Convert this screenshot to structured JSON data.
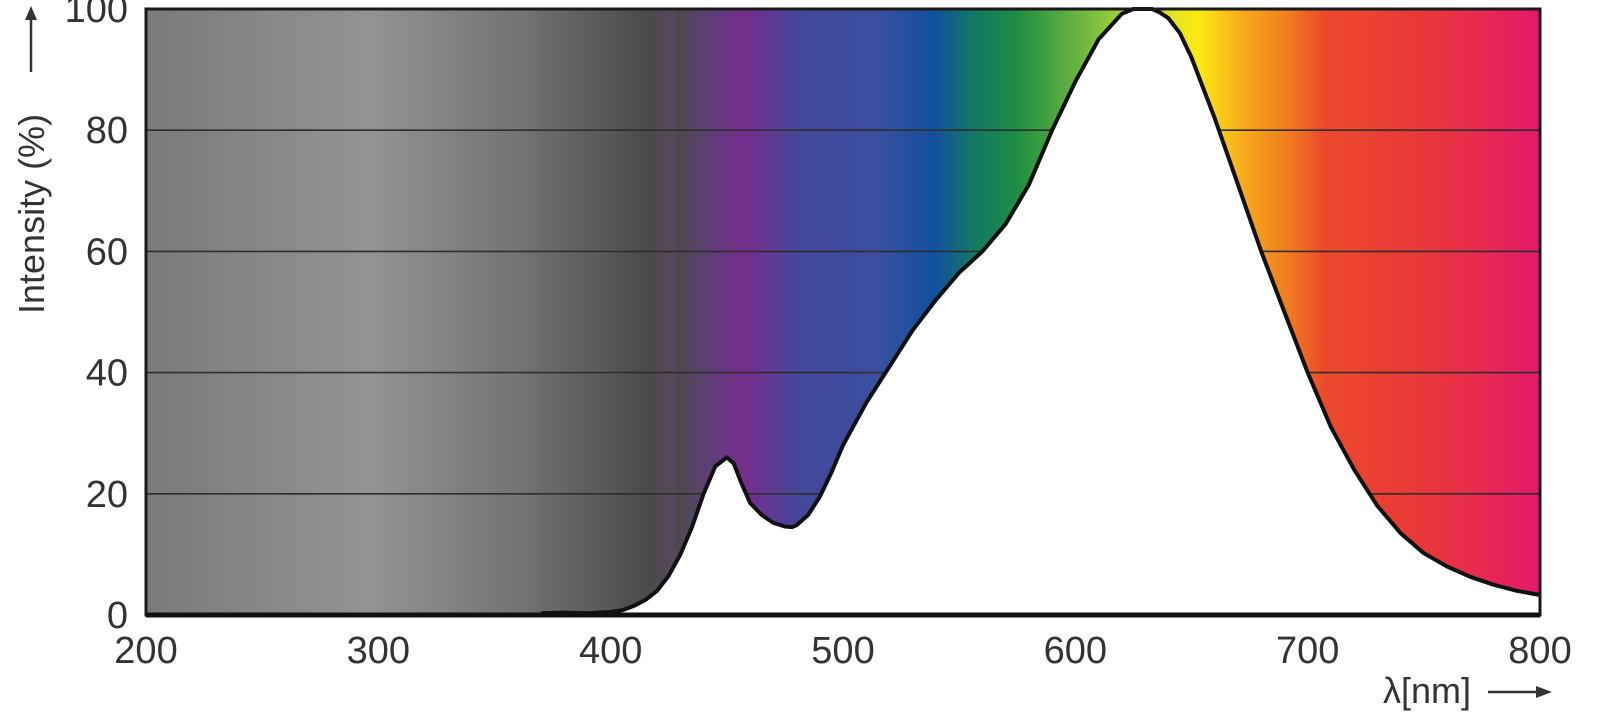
{
  "chart_data": {
    "type": "area",
    "title": "",
    "ylabel": "Intensity (%)",
    "xlabel": "λ[nm]",
    "xlim": [
      200,
      800
    ],
    "ylim": [
      0,
      100
    ],
    "xticks": [
      200,
      300,
      400,
      500,
      600,
      700,
      800
    ],
    "yticks": [
      0,
      20,
      40,
      60,
      80,
      100
    ],
    "grid": true,
    "legend": "none",
    "background": "visible spectrum gradient",
    "series": [
      {
        "x": [
          370,
          380,
          390,
          400,
          405,
          410,
          415,
          420,
          425,
          430,
          435,
          440,
          445,
          450,
          453,
          456,
          460,
          465,
          470,
          475,
          478,
          480,
          485,
          490,
          495,
          500,
          510,
          520,
          530,
          540,
          550,
          560,
          570,
          580,
          590,
          600,
          610,
          620,
          625,
          630,
          633,
          636,
          640,
          645,
          650,
          660,
          670,
          680,
          690,
          700,
          710,
          720,
          730,
          740,
          750,
          760,
          770,
          780,
          790,
          800
        ],
        "y": [
          0.3,
          0.4,
          0.3,
          0.5,
          0.8,
          1.5,
          2.5,
          4,
          6.5,
          10,
          14.5,
          20,
          24.5,
          26,
          25,
          22,
          18.5,
          16.5,
          15.2,
          14.6,
          14.5,
          14.8,
          16.5,
          19.5,
          23.5,
          28,
          35,
          41,
          47,
          52,
          56.5,
          60,
          64.5,
          71,
          80,
          88,
          95,
          99.2,
          100,
          100,
          100,
          99.5,
          98.5,
          96,
          92,
          82,
          71,
          60,
          50,
          40,
          31,
          24,
          18,
          13.5,
          10.2,
          8,
          6.3,
          5,
          4,
          3.3
        ]
      }
    ]
  }
}
